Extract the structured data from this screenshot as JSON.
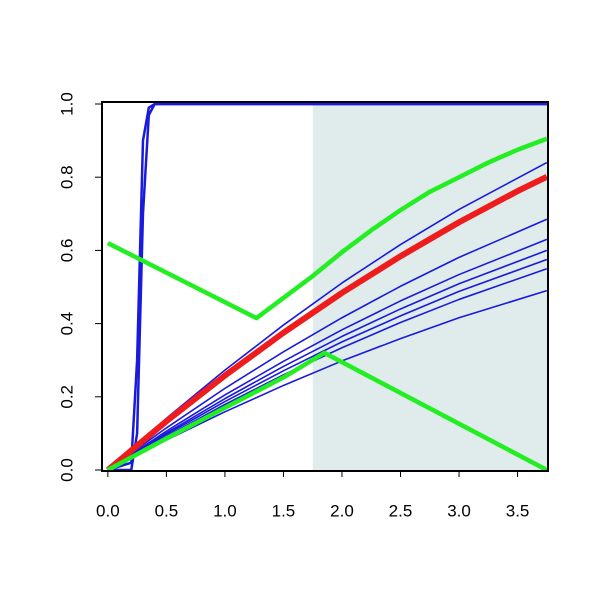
{
  "chart_data": {
    "type": "line",
    "xlim": [
      -0.05,
      3.76
    ],
    "ylim": [
      0,
      1
    ],
    "xticks": [
      {
        "value": 0,
        "label": "0.0"
      },
      {
        "value": 0.5,
        "label": "0.5"
      },
      {
        "value": 1,
        "label": "1.0"
      },
      {
        "value": 1.5,
        "label": "1.5"
      },
      {
        "value": 2,
        "label": "2.0"
      },
      {
        "value": 2.5,
        "label": "2.5"
      },
      {
        "value": 3,
        "label": "3.0"
      },
      {
        "value": 3.5,
        "label": "3.5"
      }
    ],
    "yticks": [
      {
        "value": 0,
        "label": "0.0"
      },
      {
        "value": 0.2,
        "label": "0.2"
      },
      {
        "value": 0.4,
        "label": "0.4"
      },
      {
        "value": 0.6,
        "label": "0.6"
      },
      {
        "value": 0.8,
        "label": "0.8"
      },
      {
        "value": 1,
        "label": "1.0"
      }
    ],
    "shaded_region": {
      "x": [
        1.75,
        3.76
      ],
      "color": "#dfeceb"
    },
    "series": [
      {
        "color": "#1a1adc",
        "width": 2.5,
        "x": [
          0,
          0.2,
          0.25,
          0.3,
          0.35,
          0.4,
          3.75
        ],
        "values": [
          0,
          0.02,
          0.3,
          0.9,
          0.99,
          1,
          1
        ]
      },
      {
        "color": "#1a1adc",
        "width": 2.5,
        "x": [
          0,
          0.2,
          0.25,
          0.3,
          0.35,
          0.4,
          3.75
        ],
        "values": [
          0,
          0,
          0.1,
          0.7,
          0.97,
          1,
          1
        ]
      },
      {
        "color": "#1a1adc",
        "width": 1.6,
        "x": [
          0,
          0.5,
          1,
          1.5,
          2,
          2.5,
          3,
          3.75
        ],
        "values": [
          0,
          0.141,
          0.273,
          0.396,
          0.511,
          0.616,
          0.712,
          0.84
        ]
      },
      {
        "color": "#1a1adc",
        "width": 1.6,
        "x": [
          0,
          0.5,
          1,
          1.5,
          2,
          2.5,
          3,
          3.75
        ],
        "values": [
          0,
          0.115,
          0.223,
          0.323,
          0.416,
          0.502,
          0.581,
          0.685
        ]
      },
      {
        "color": "#1a1adc",
        "width": 1.6,
        "x": [
          0,
          0.5,
          1,
          1.5,
          2,
          2.5,
          3,
          3.75
        ],
        "values": [
          0,
          0.106,
          0.205,
          0.297,
          0.383,
          0.462,
          0.534,
          0.63
        ]
      },
      {
        "color": "#1a1adc",
        "width": 1.6,
        "x": [
          0,
          0.5,
          1,
          1.5,
          2,
          2.5,
          3,
          3.75
        ],
        "values": [
          0,
          0.101,
          0.195,
          0.283,
          0.365,
          0.44,
          0.509,
          0.6
        ]
      },
      {
        "color": "#1a1adc",
        "width": 1.6,
        "x": [
          0,
          0.5,
          1,
          1.5,
          2,
          2.5,
          3,
          3.75
        ],
        "values": [
          0,
          0.097,
          0.187,
          0.271,
          0.35,
          0.421,
          0.488,
          0.575
        ]
      },
      {
        "color": "#1a1adc",
        "width": 1.6,
        "x": [
          0,
          0.5,
          1,
          1.5,
          2,
          2.5,
          3,
          3.75
        ],
        "values": [
          0,
          0.092,
          0.179,
          0.26,
          0.334,
          0.403,
          0.466,
          0.55
        ]
      },
      {
        "color": "#1a1adc",
        "width": 1.6,
        "x": [
          0,
          0.5,
          1,
          1.5,
          2,
          2.5,
          3,
          3.75
        ],
        "values": [
          0,
          0.082,
          0.159,
          0.231,
          0.298,
          0.359,
          0.416,
          0.49
        ]
      },
      {
        "color": "#ee1c1c",
        "width": 6,
        "x": [
          0,
          0.5,
          1,
          1.5,
          2,
          2.5,
          3,
          3.5,
          3.75
        ],
        "values": [
          0,
          0.133,
          0.258,
          0.375,
          0.484,
          0.584,
          0.677,
          0.762,
          0.801
        ]
      },
      {
        "color": "#22ee22",
        "width": 4.5,
        "x": [
          0,
          1.27,
          1.5,
          1.75,
          2,
          2.25,
          2.5,
          2.75,
          3,
          3.25,
          3.5,
          3.75
        ],
        "values": [
          0.62,
          0.415,
          0.47,
          0.53,
          0.595,
          0.655,
          0.71,
          0.76,
          0.8,
          0.84,
          0.875,
          0.905
        ]
      },
      {
        "color": "#22ee22",
        "width": 4.5,
        "x": [
          0,
          0.5,
          1,
          1.5,
          1.85,
          3.75
        ],
        "values": [
          0,
          0.086,
          0.17,
          0.253,
          0.32,
          0
        ]
      }
    ]
  }
}
